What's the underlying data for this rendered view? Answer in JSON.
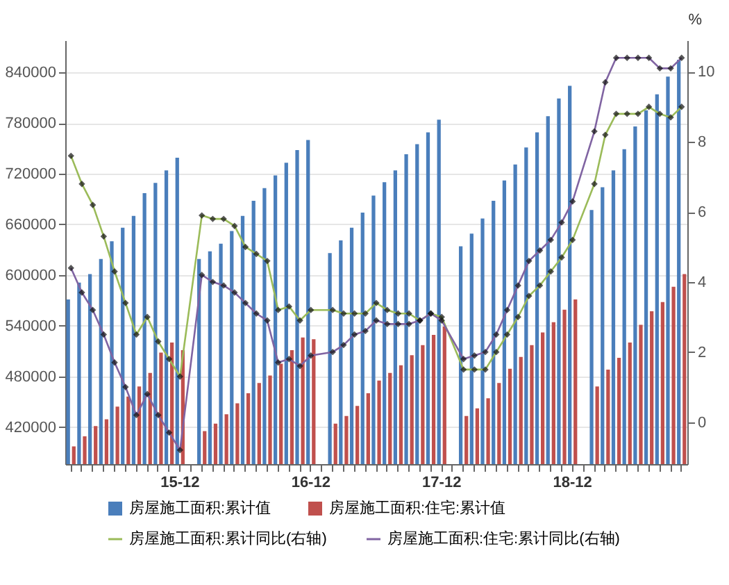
{
  "chart_data": {
    "type": "bar",
    "categories": [
      null,
      null,
      null,
      null,
      null,
      null,
      null,
      null,
      null,
      null,
      "15-12",
      null,
      null,
      null,
      null,
      null,
      null,
      null,
      null,
      null,
      null,
      null,
      "16-12",
      null,
      null,
      null,
      null,
      null,
      null,
      null,
      null,
      null,
      null,
      null,
      "17-12",
      null,
      null,
      null,
      null,
      null,
      null,
      null,
      null,
      null,
      null,
      null,
      "18-12",
      null,
      null,
      null,
      null,
      null,
      null,
      null,
      null,
      null,
      null
    ],
    "series": [
      {
        "name": "房屋施工面积:累计值",
        "color": "#4a7ebb",
        "values": [
          571000,
          591000,
          601000,
          619000,
          640000,
          656000,
          670000,
          697000,
          709000,
          724000,
          739000,
          null,
          619000,
          628000,
          637000,
          652000,
          670000,
          688000,
          703000,
          718000,
          733000,
          748000,
          760000,
          null,
          626000,
          641000,
          656000,
          674000,
          694000,
          710000,
          724000,
          743000,
          755000,
          769000,
          784000,
          null,
          634000,
          649000,
          667000,
          688000,
          712000,
          731000,
          751000,
          769000,
          788000,
          809000,
          824000,
          null,
          677000,
          704000,
          724000,
          749000,
          776000,
          795000,
          814000,
          835000,
          855000
        ]
      },
      {
        "name": "房屋施工面积:住宅:累计值",
        "color": "#c0504d",
        "values": [
          397000,
          409000,
          421000,
          429000,
          444000,
          456000,
          468000,
          484000,
          508000,
          520000,
          511000,
          null,
          415000,
          424000,
          435000,
          448000,
          460000,
          472000,
          481000,
          495000,
          511000,
          526000,
          524000,
          null,
          424000,
          433000,
          445000,
          460000,
          475000,
          484000,
          493000,
          505000,
          517000,
          529000,
          539000,
          null,
          433000,
          442000,
          454000,
          472000,
          489000,
          503000,
          517000,
          532000,
          544000,
          559000,
          571000,
          null,
          468000,
          488000,
          502000,
          520000,
          541000,
          557000,
          568000,
          586000,
          601000
        ]
      },
      {
        "name": "房屋施工面积:累计同比(右轴)",
        "type": "line",
        "axis": "y2",
        "color": "#9bbb59",
        "values": [
          7.6,
          6.8,
          6.2,
          5.3,
          4.3,
          3.4,
          2.5,
          3.0,
          2.3,
          1.8,
          1.3,
          null,
          5.9,
          5.8,
          5.8,
          5.6,
          5.0,
          4.8,
          4.6,
          3.2,
          3.3,
          2.9,
          3.2,
          null,
          3.2,
          3.1,
          3.1,
          3.1,
          3.4,
          3.2,
          3.1,
          3.1,
          2.9,
          3.1,
          3.0,
          null,
          1.5,
          1.5,
          1.5,
          2.0,
          2.5,
          3.0,
          3.6,
          3.9,
          4.3,
          4.7,
          5.2,
          null,
          6.8,
          8.2,
          8.8,
          8.8,
          8.8,
          9.0,
          8.8,
          8.7,
          9.0
        ]
      },
      {
        "name": "房屋施工面积:住宅:累计同比(右轴)",
        "type": "line",
        "axis": "y2",
        "color": "#8064a2",
        "values": [
          4.4,
          3.7,
          3.2,
          2.5,
          1.7,
          1.0,
          0.2,
          0.8,
          0.2,
          -0.3,
          -0.8,
          null,
          4.2,
          4.0,
          3.9,
          3.7,
          3.4,
          3.1,
          2.9,
          1.7,
          1.8,
          1.6,
          1.9,
          null,
          2.0,
          2.2,
          2.5,
          2.6,
          2.9,
          2.8,
          2.8,
          2.8,
          2.9,
          3.1,
          2.9,
          null,
          1.8,
          1.9,
          2.0,
          2.5,
          3.2,
          3.9,
          4.6,
          4.9,
          5.2,
          5.7,
          6.3,
          null,
          8.3,
          9.7,
          10.4,
          10.4,
          10.4,
          10.4,
          10.1,
          10.1,
          10.4
        ]
      }
    ],
    "ylim": [
      376000,
      878000
    ],
    "yticks": [
      420000,
      480000,
      540000,
      600000,
      660000,
      720000,
      780000,
      840000
    ],
    "y2lim": [
      -1.2,
      10.9
    ],
    "y2ticks": [
      0,
      2,
      4,
      6,
      8,
      10
    ],
    "y2label": "%",
    "grid": "y",
    "legend": "bottom",
    "marker": "diamond",
    "line_style": "solid"
  }
}
